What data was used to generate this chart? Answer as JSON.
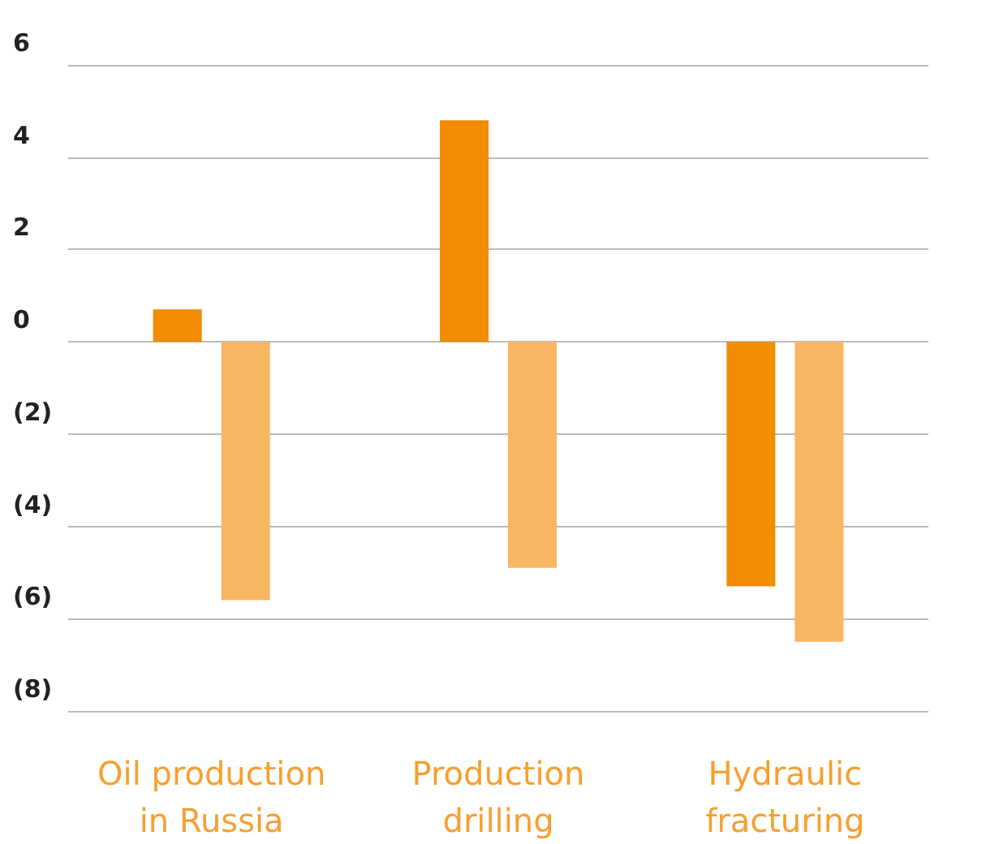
{
  "chart_data": {
    "type": "bar",
    "categories": [
      "Oil production\nin Russia",
      "Production\ndrilling",
      "Hydraulic\nfracturing"
    ],
    "series": [
      {
        "color": "#f28c00",
        "values": [
          0.7,
          4.8,
          -5.3
        ]
      },
      {
        "color": "#f9b660",
        "values": [
          -5.6,
          -4.9,
          -6.5
        ]
      }
    ],
    "ylim": [
      -8,
      6
    ],
    "yticks": [
      {
        "value": -8,
        "label": "(8)"
      },
      {
        "value": -6,
        "label": "(6)"
      },
      {
        "value": -4,
        "label": "(4)"
      },
      {
        "value": -2,
        "label": "(2)"
      },
      0,
      2,
      4,
      6
    ],
    "grid": "y"
  }
}
